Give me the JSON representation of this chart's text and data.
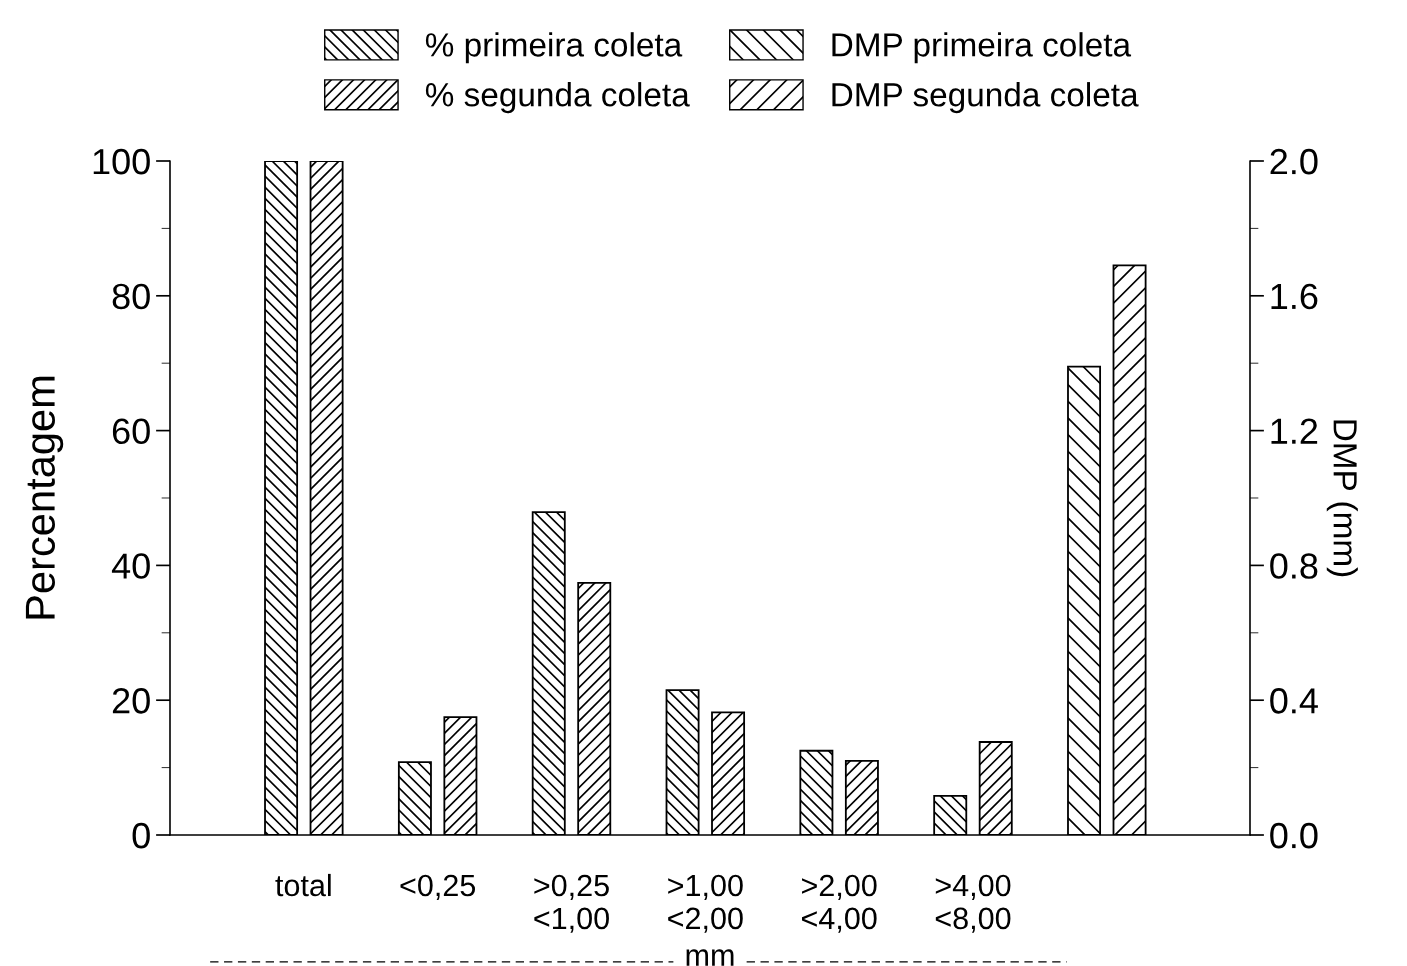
{
  "chart_data": {
    "type": "bar",
    "ylabel": "Percentagem",
    "y2label": "DMP (mm)",
    "xlabel": "mm",
    "categories": [
      "total",
      "<0,25",
      ">0,25\n<1,00",
      ">1,00\n<2,00",
      ">2,00\n<4,00",
      ">4,00\n<8,00",
      null
    ],
    "series": [
      {
        "name": "% primeira coleta",
        "color": "#000000",
        "values": [
          100,
          10.8,
          47.9,
          21.5,
          12.5,
          5.8,
          null
        ]
      },
      {
        "name": "% segunda coleta",
        "color": "#000000",
        "values": [
          100,
          17.5,
          37.4,
          18.2,
          11.0,
          13.8,
          null
        ]
      },
      {
        "name": "DMP primeira coleta",
        "color": "#000000",
        "axis": "y2",
        "values": [
          null,
          null,
          null,
          null,
          null,
          null,
          1.39
        ]
      },
      {
        "name": "DMP segunda coleta",
        "color": "#000000",
        "axis": "y2",
        "values": [
          null,
          null,
          null,
          null,
          null,
          null,
          1.69
        ]
      }
    ],
    "ylim": [
      0,
      100
    ],
    "yticks": [
      0,
      20,
      40,
      60,
      80,
      100
    ],
    "y2lim": [
      0,
      2.0
    ],
    "y2ticks": [
      {
        "value": 0,
        "label": "0.0"
      },
      {
        "value": 0.4,
        "label": "0.4"
      },
      {
        "value": 0.8,
        "label": "0.8"
      },
      {
        "value": 1.2,
        "label": "1.2"
      },
      {
        "value": 1.6,
        "label": "1.6"
      },
      {
        "value": 2.0,
        "label": "2.0"
      }
    ],
    "legend": "top",
    "grid": false
  }
}
